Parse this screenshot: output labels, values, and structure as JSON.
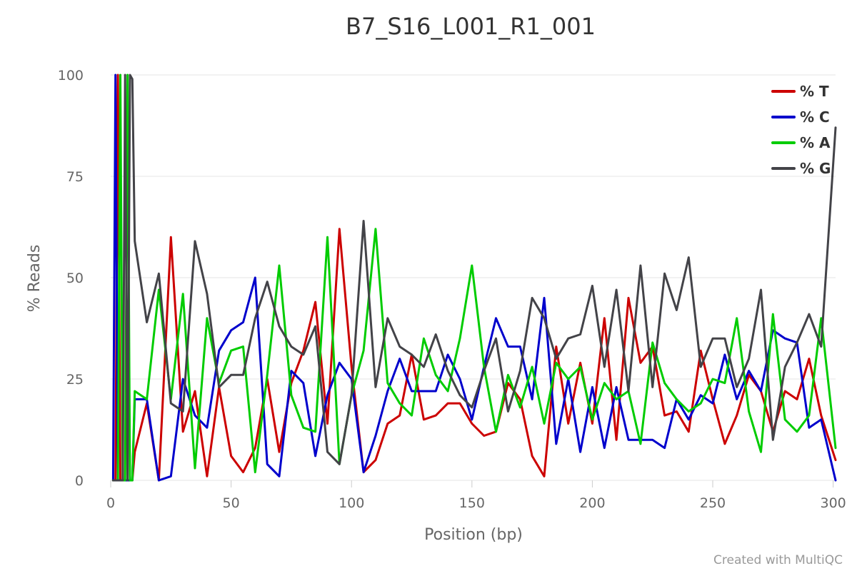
{
  "chart_data": {
    "type": "line",
    "title": "B7_S16_L001_R1_001",
    "xlabel": "Position (bp)",
    "ylabel": "% Reads",
    "xlim": [
      0,
      301
    ],
    "ylim": [
      0,
      100
    ],
    "x_ticks": [
      "0",
      "50",
      "100",
      "150",
      "200",
      "250",
      "300"
    ],
    "y_ticks": [
      "0",
      "25",
      "50",
      "75",
      "100"
    ],
    "grid": true,
    "legend_position": "top-right",
    "credit": "Created with MultiQC",
    "x": [
      1,
      2,
      3,
      4,
      5,
      6,
      7,
      8,
      9,
      10,
      15,
      20,
      25,
      30,
      35,
      40,
      45,
      50,
      55,
      60,
      65,
      70,
      75,
      80,
      85,
      90,
      95,
      100,
      105,
      110,
      115,
      120,
      125,
      130,
      135,
      140,
      145,
      150,
      155,
      160,
      165,
      170,
      175,
      180,
      185,
      190,
      195,
      200,
      205,
      210,
      215,
      220,
      225,
      230,
      235,
      240,
      245,
      250,
      255,
      260,
      265,
      270,
      275,
      280,
      285,
      290,
      295,
      301
    ],
    "series": [
      {
        "name": "% T",
        "color": "#cc0000",
        "values": [
          0,
          0,
          100,
          0,
          0,
          0,
          0,
          0,
          0,
          7,
          19,
          0,
          60,
          12,
          22,
          1,
          23,
          6,
          2,
          8,
          25,
          7,
          24,
          32,
          44,
          14,
          62,
          28,
          2,
          5,
          14,
          16,
          31,
          15,
          16,
          19,
          19,
          14,
          11,
          12,
          24,
          20,
          6,
          1,
          33,
          14,
          29,
          14,
          40,
          10,
          45,
          29,
          33,
          16,
          17,
          12,
          32,
          20,
          9,
          16,
          26,
          22,
          12,
          22,
          20,
          30,
          16,
          5
        ]
      },
      {
        "name": "% C",
        "color": "#0000cc",
        "values": [
          0,
          100,
          0,
          0,
          0,
          0,
          0,
          0,
          0,
          20,
          20,
          0,
          1,
          25,
          16,
          13,
          32,
          37,
          39,
          50,
          4,
          1,
          27,
          24,
          6,
          21,
          29,
          25,
          2,
          11,
          22,
          30,
          22,
          22,
          22,
          31,
          25,
          15,
          28,
          40,
          33,
          33,
          20,
          45,
          9,
          25,
          7,
          23,
          8,
          23,
          10,
          10,
          10,
          8,
          20,
          15,
          21,
          19,
          31,
          20,
          27,
          22,
          37,
          35,
          34,
          13,
          15,
          0
        ]
      },
      {
        "name": "% A",
        "color": "#00cc00",
        "values": [
          0,
          0,
          0,
          100,
          0,
          0,
          100,
          0,
          0,
          22,
          20,
          47,
          20,
          46,
          3,
          40,
          24,
          32,
          33,
          2,
          26,
          53,
          21,
          13,
          12,
          60,
          4,
          21,
          32,
          62,
          24,
          19,
          16,
          35,
          26,
          22,
          35,
          53,
          28,
          12,
          26,
          18,
          28,
          14,
          29,
          25,
          28,
          15,
          24,
          20,
          22,
          9,
          34,
          24,
          20,
          17,
          19,
          25,
          24,
          40,
          17,
          7,
          41,
          15,
          12,
          16,
          40,
          8
        ]
      },
      {
        "name": "% G",
        "color": "#434348",
        "values": [
          0,
          0,
          0,
          0,
          0,
          100,
          0,
          100,
          99,
          59,
          39,
          51,
          19,
          17,
          59,
          46,
          23,
          26,
          26,
          40,
          49,
          38,
          33,
          31,
          38,
          7,
          4,
          21,
          64,
          23,
          40,
          33,
          31,
          28,
          36,
          27,
          21,
          18,
          27,
          35,
          17,
          27,
          45,
          40,
          30,
          35,
          36,
          48,
          28,
          47,
          22,
          53,
          23,
          51,
          42,
          55,
          28,
          35,
          35,
          23,
          30,
          47,
          10,
          28,
          34,
          41,
          33,
          87
        ]
      }
    ]
  }
}
